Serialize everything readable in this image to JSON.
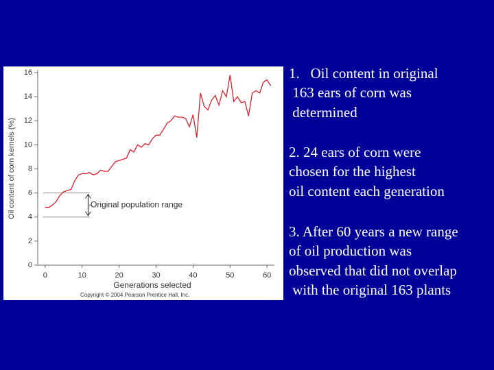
{
  "chart_data": {
    "type": "line",
    "xlabel": "Generations selected",
    "ylabel": "Oil content of corn kernels (%)",
    "credit": "Copyright © 2004 Pearson Prentice Hall, Inc.",
    "x": [
      0,
      1,
      2,
      3,
      4,
      5,
      6,
      7,
      8,
      9,
      10,
      11,
      12,
      13,
      14,
      15,
      16,
      17,
      18,
      19,
      20,
      21,
      22,
      23,
      24,
      25,
      26,
      27,
      28,
      29,
      30,
      31,
      32,
      33,
      34,
      35,
      36,
      37,
      38,
      39,
      40,
      41,
      42,
      43,
      44,
      45,
      46,
      47,
      48,
      49,
      50,
      51,
      52,
      53,
      54,
      55,
      56,
      57,
      58,
      59,
      60,
      61
    ],
    "series": [
      {
        "color": "#d8202a",
        "values": [
          4.8,
          4.8,
          5.0,
          5.3,
          5.8,
          6.1,
          6.2,
          6.3,
          7.0,
          7.5,
          7.6,
          7.6,
          7.7,
          7.5,
          7.6,
          7.9,
          7.8,
          7.8,
          8.2,
          8.6,
          8.7,
          8.8,
          8.9,
          9.6,
          9.4,
          10.0,
          9.8,
          10.1,
          10.0,
          10.5,
          10.8,
          10.8,
          11.3,
          11.8,
          12.0,
          12.4,
          12.3,
          12.3,
          12.2,
          11.5,
          12.5,
          10.6,
          14.3,
          13.2,
          12.9,
          13.7,
          14.1,
          13.3,
          14.5,
          14.0,
          15.8,
          13.6,
          14.0,
          13.5,
          13.6,
          12.4,
          14.3,
          14.5,
          14.3,
          15.2,
          15.4,
          14.9
        ]
      }
    ],
    "annotation": {
      "text": "Original population range",
      "low": 4,
      "high": 6,
      "x_end": 12
    },
    "xlim": [
      -2,
      62
    ],
    "ylim": [
      0,
      16
    ],
    "xticks": [
      0,
      10,
      20,
      30,
      40,
      50,
      60
    ],
    "yticks": [
      0,
      2,
      4,
      6,
      8,
      10,
      12,
      14,
      16
    ]
  },
  "text": [
    "1.   Oil content in original",
    " 163 ears of corn was",
    " determined",
    "2. 24 ears of corn were",
    "chosen for the highest",
    "oil content each generation",
    "3. After 60 years a new range",
    "of oil production was",
    "observed that did not overlap",
    " with the original 163 plants"
  ]
}
